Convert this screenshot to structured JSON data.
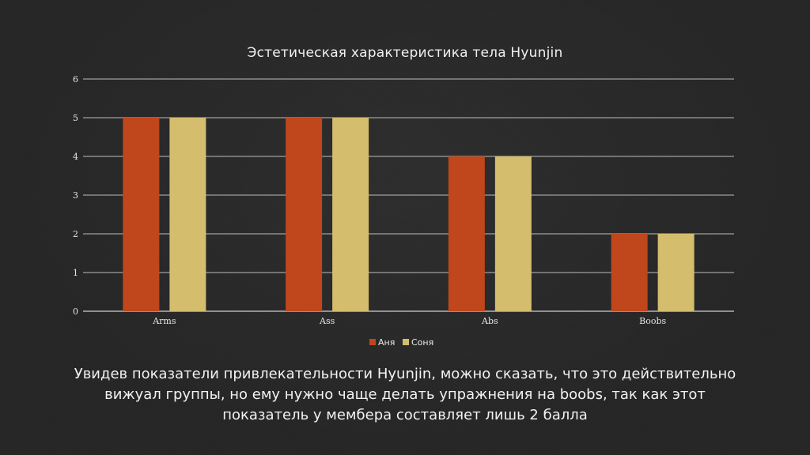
{
  "slide": {
    "caption": "Увидев показатели привлекательности Hyunjin, можно сказать, что это действительно вижуал группы, но ему нужно чаще делать упражнения на boobs, так как этот показатель у мембера составляет лишь 2 балла"
  },
  "chart_data": {
    "type": "bar",
    "title": "Эстетическая характеристика тела Hyunjin",
    "xlabel": "",
    "ylabel": "",
    "categories": [
      "Arms",
      "Ass",
      "Abs",
      "Boobs"
    ],
    "ylim": [
      0,
      6
    ],
    "yticks": [
      "0",
      "1",
      "2",
      "3",
      "4",
      "5",
      "6"
    ],
    "grid": true,
    "legend_position": "bottom",
    "series": [
      {
        "name": "Аня",
        "values": [
          5,
          5,
          4,
          2
        ],
        "color": "#C0461C"
      },
      {
        "name": "Соня",
        "values": [
          5,
          5,
          4,
          2
        ],
        "color": "#D5BD6E"
      }
    ]
  }
}
